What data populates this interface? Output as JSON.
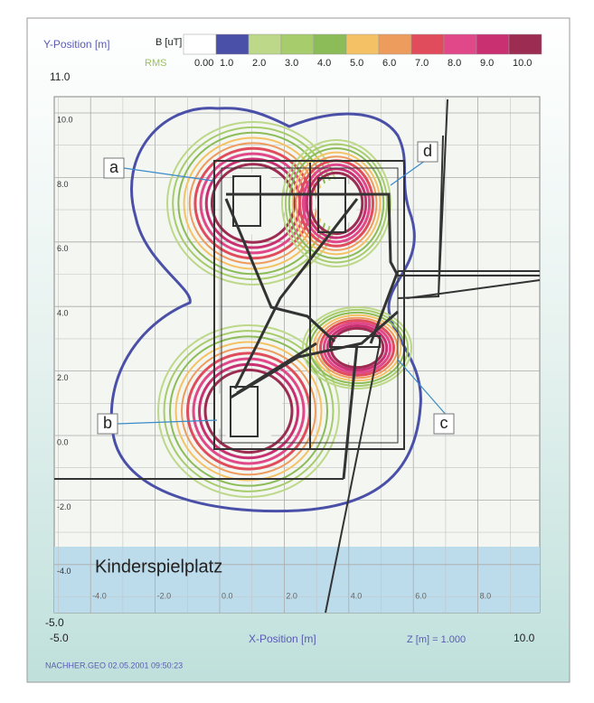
{
  "y_axis": {
    "title": "Y-Position [m]",
    "max_label": "11.0",
    "min_label": "-5.0",
    "ticks": [
      {
        "value": 10,
        "label": "10.0"
      },
      {
        "value": 8,
        "label": "8.0"
      },
      {
        "value": 6,
        "label": "6.0"
      },
      {
        "value": 4,
        "label": "4.0"
      },
      {
        "value": 2,
        "label": "2.0"
      },
      {
        "value": 0,
        "label": "0.0"
      },
      {
        "value": -2,
        "label": "-2.0"
      },
      {
        "value": -4,
        "label": "-4.0"
      }
    ]
  },
  "x_axis": {
    "title": "X-Position [m]",
    "min_label": "-5.0",
    "max_label": "10.0",
    "ticks": [
      {
        "value": -4,
        "label": "-4.0"
      },
      {
        "value": -2,
        "label": "-2.0"
      },
      {
        "value": 0,
        "label": "0.0"
      },
      {
        "value": 2,
        "label": "2.0"
      },
      {
        "value": 4,
        "label": "4.0"
      },
      {
        "value": 6,
        "label": "6.0"
      },
      {
        "value": 8,
        "label": "8.0"
      }
    ]
  },
  "legend": {
    "title": "B [uT]",
    "subtitle": "RMS",
    "scale": [
      {
        "label": "0.00",
        "color": "#ffffff"
      },
      {
        "label": "1.0",
        "color": "#4a50a8"
      },
      {
        "label": "2.0",
        "color": "#bcd888"
      },
      {
        "label": "3.0",
        "color": "#a6cc6c"
      },
      {
        "label": "4.0",
        "color": "#8cbc58"
      },
      {
        "label": "5.0",
        "color": "#f4c264"
      },
      {
        "label": "6.0",
        "color": "#ee9c5e"
      },
      {
        "label": "7.0",
        "color": "#e04c5c"
      },
      {
        "label": "8.0",
        "color": "#e0488a"
      },
      {
        "label": "9.0",
        "color": "#c83072"
      },
      {
        "label": "10.0",
        "color": "#9c2c52"
      }
    ]
  },
  "annotations": [
    "a",
    "b",
    "c",
    "d"
  ],
  "area_label": "Kinderspielplatz",
  "z_label": "Z [m] = 1.000",
  "footer": "NACHHER.GEO   02.05.2001   09:50:23"
}
